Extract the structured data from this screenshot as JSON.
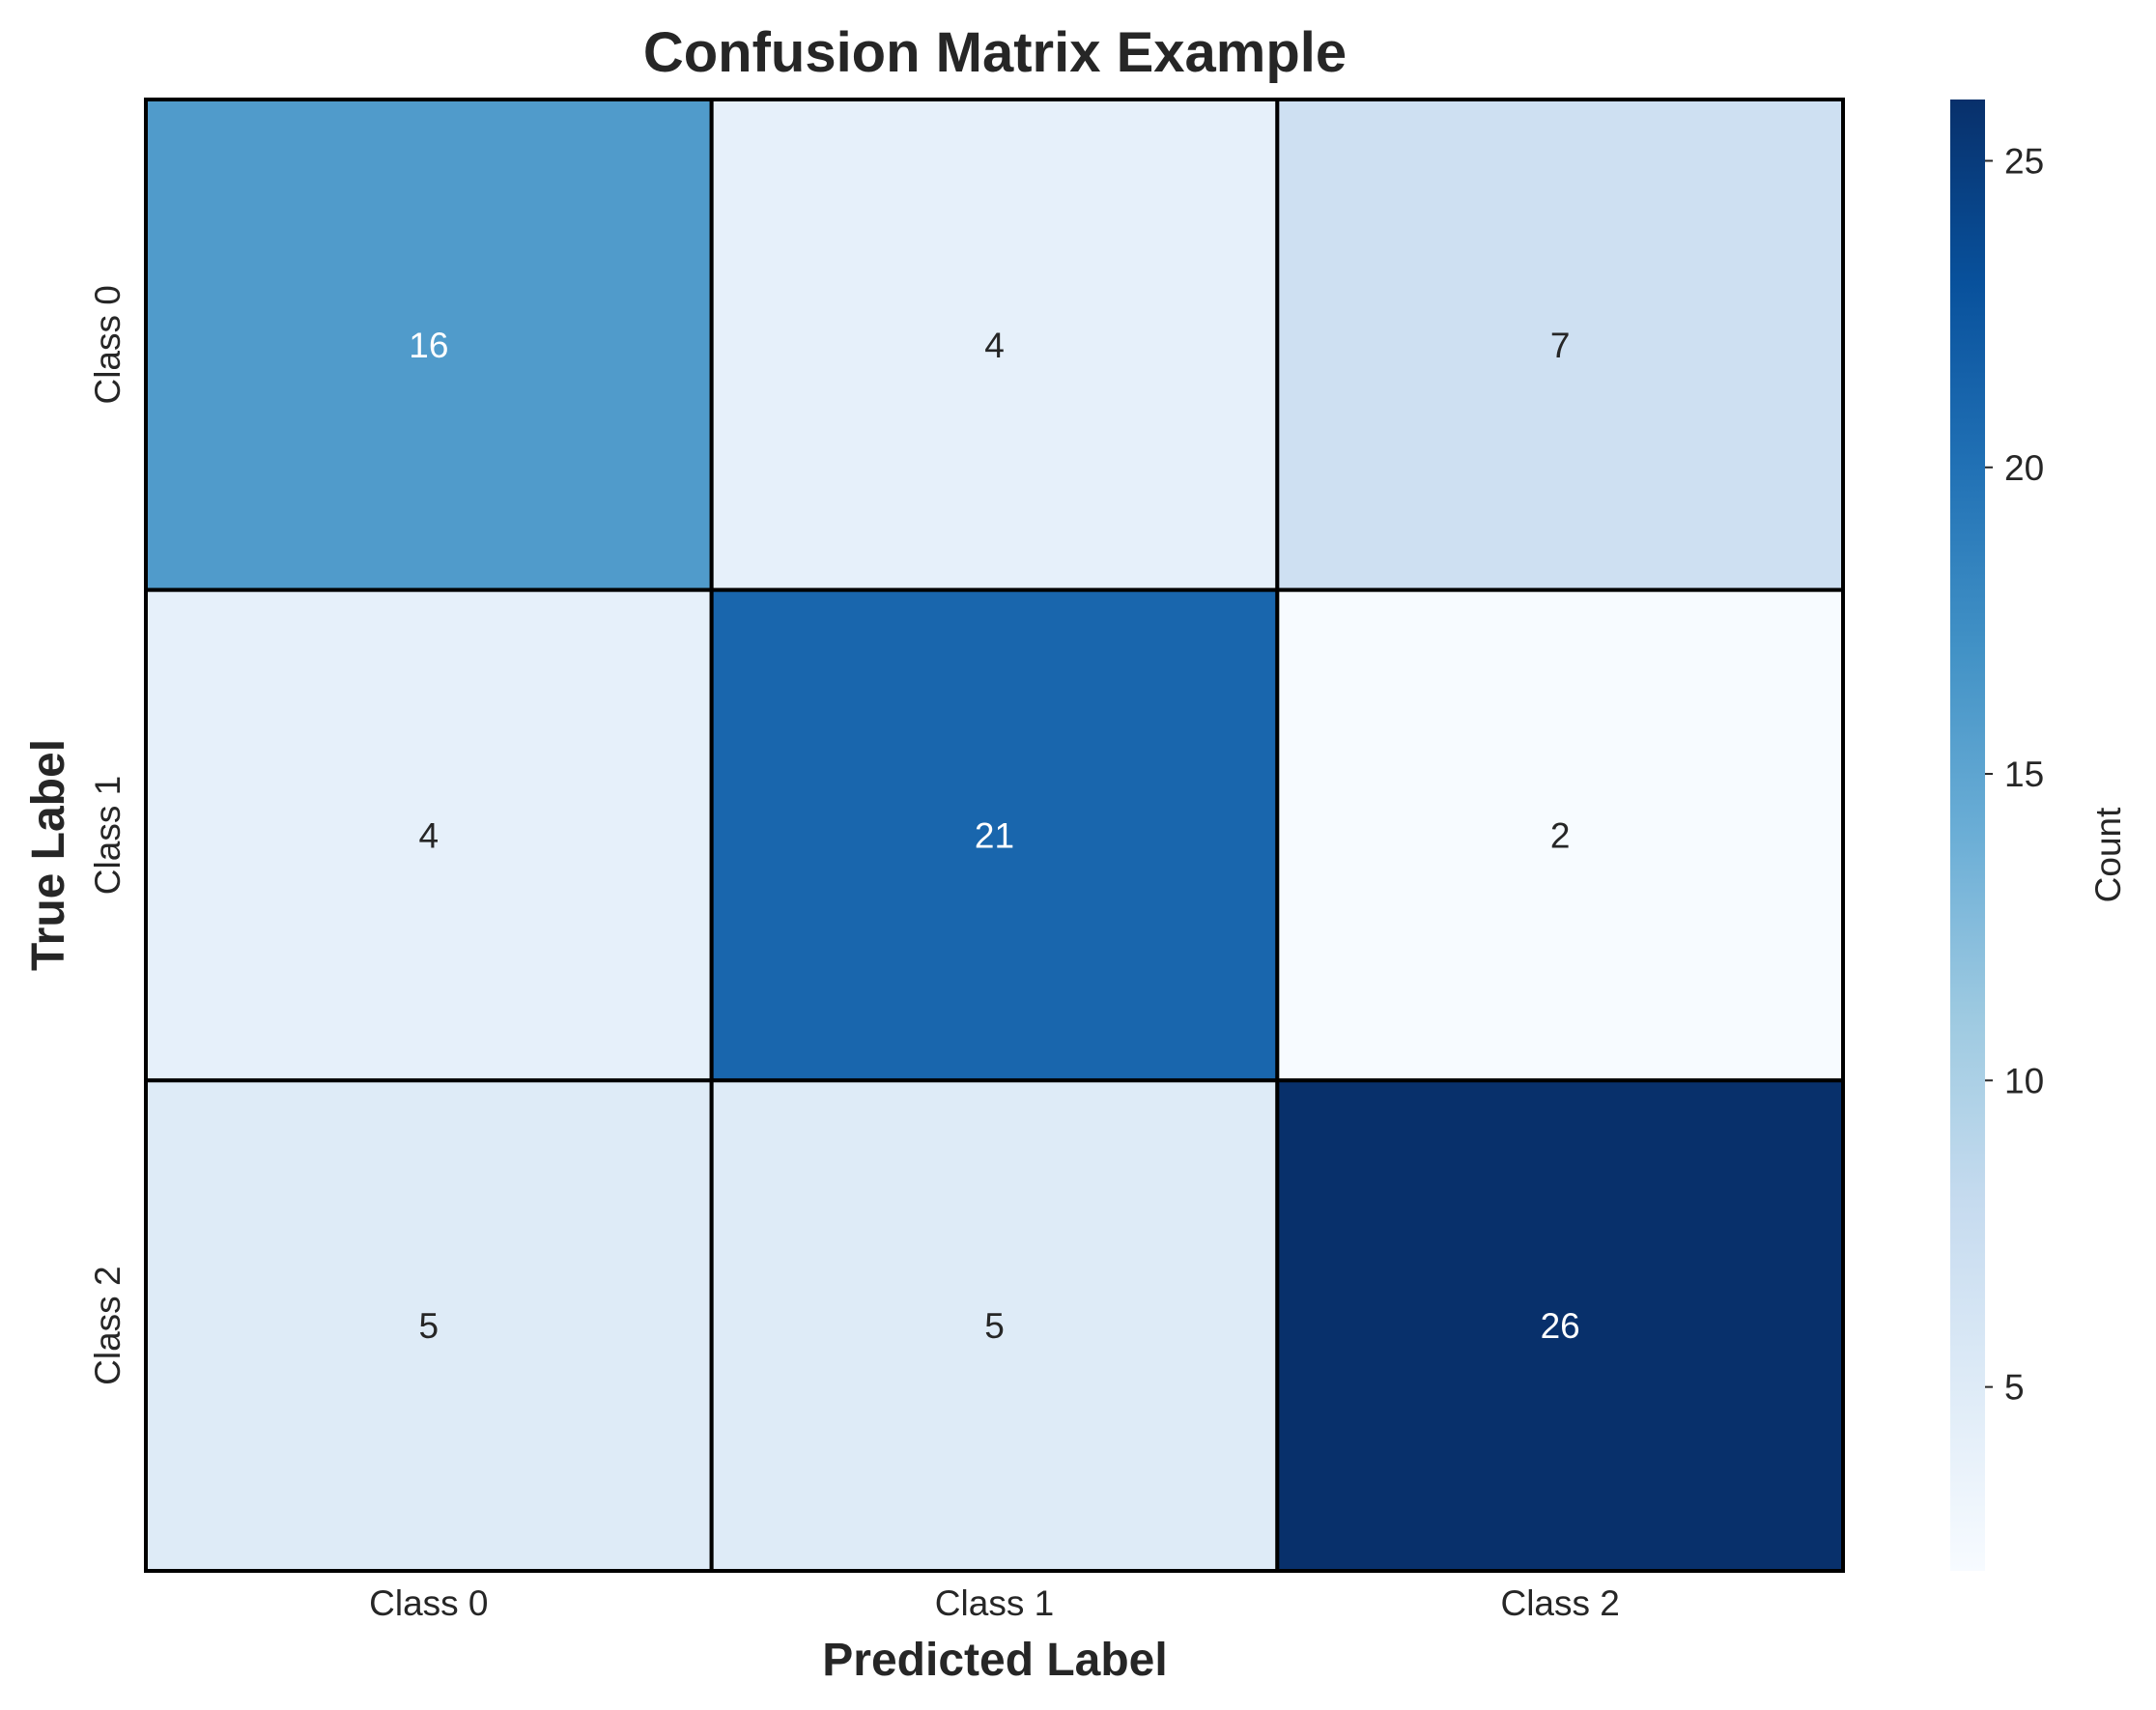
{
  "chart_data": {
    "type": "heatmap",
    "title": "Confusion Matrix Example",
    "xlabel": "Predicted Label",
    "ylabel": "True Label",
    "x_categories": [
      "Class 0",
      "Class 1",
      "Class 2"
    ],
    "y_categories": [
      "Class 0",
      "Class 1",
      "Class 2"
    ],
    "values": [
      [
        16,
        4,
        7
      ],
      [
        4,
        21,
        2
      ],
      [
        5,
        5,
        26
      ]
    ],
    "colormap": "Blues",
    "colorbar": {
      "label": "Count",
      "range": [
        2,
        26
      ],
      "ticks": [
        5,
        10,
        15,
        20,
        25
      ]
    },
    "cell_border_color": "#000000",
    "grid": false
  }
}
